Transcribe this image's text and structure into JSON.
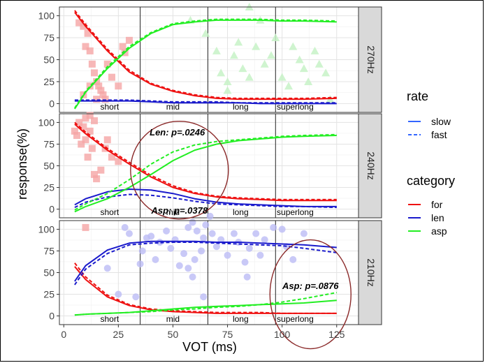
{
  "chart_data": {
    "type": "line",
    "xlabel": "VOT (ms)",
    "ylabel": "response(%)",
    "xlim": [
      -2,
      135
    ],
    "ylim": [
      -10,
      110
    ],
    "x_ticks": [
      0,
      25,
      50,
      75,
      100,
      125
    ],
    "y_ticks": [
      0,
      25,
      50,
      75,
      100
    ],
    "grid": true,
    "boundaries": [
      35,
      66,
      97
    ],
    "region_labels": [
      {
        "x": 21,
        "label": "short"
      },
      {
        "x": 50,
        "label": "mid"
      },
      {
        "x": 81,
        "label": "long"
      },
      {
        "x": 106,
        "label": "superlong"
      }
    ],
    "legends": {
      "rate": {
        "title": "rate",
        "items": [
          {
            "label": "slow",
            "style": "solid"
          },
          {
            "label": "fast",
            "style": "dashed"
          }
        ]
      },
      "category": {
        "title": "category",
        "items": [
          {
            "label": "for",
            "color": "#ee1111"
          },
          {
            "label": "len",
            "color": "#1a1acc"
          },
          {
            "label": "asp",
            "color": "#22ee22"
          }
        ]
      }
    },
    "x": [
      5,
      10,
      20,
      30,
      40,
      50,
      60,
      70,
      80,
      90,
      100,
      110,
      125
    ],
    "panels": [
      {
        "strip": "270Hz",
        "series": [
          {
            "category": "for",
            "rate": "slow",
            "values": [
              104,
              88,
              60,
              36,
              22,
              14,
              9,
              6,
              5,
              5,
              5,
              5,
              6
            ]
          },
          {
            "category": "for",
            "rate": "fast",
            "values": [
              106,
              90,
              62,
              38,
              23,
              15,
              10,
              7,
              6,
              6,
              6,
              6,
              7
            ]
          },
          {
            "category": "len",
            "rate": "slow",
            "values": [
              3,
              3,
              3,
              3,
              2,
              1,
              1,
              1,
              1,
              0,
              0,
              0,
              0
            ]
          },
          {
            "category": "len",
            "rate": "fast",
            "values": [
              4,
              4,
              4,
              4,
              3,
              2,
              2,
              2,
              1,
              1,
              1,
              1,
              1
            ]
          },
          {
            "category": "asp",
            "rate": "slow",
            "values": [
              -6,
              13,
              40,
              63,
              80,
              90,
              93,
              95,
              95,
              95,
              94,
              94,
              93
            ]
          },
          {
            "category": "asp",
            "rate": "fast",
            "values": [
              -5,
              14,
              42,
              65,
              81,
              91,
              94,
              96,
              96,
              96,
              95,
              95,
              94
            ]
          }
        ],
        "points": [
          {
            "color": "#f5a5a5",
            "shape": "square",
            "xy": [
              [
                7,
                92
              ],
              [
                9,
                88
              ],
              [
                10,
                65
              ],
              [
                11,
                80
              ],
              [
                12,
                60
              ],
              [
                13,
                45
              ],
              [
                14,
                35
              ],
              [
                15,
                25
              ],
              [
                16,
                20
              ],
              [
                17,
                15
              ],
              [
                18,
                10
              ],
              [
                19,
                5
              ],
              [
                20,
                45
              ],
              [
                22,
                30
              ],
              [
                25,
                20
              ],
              [
                27,
                65
              ],
              [
                28,
                58
              ],
              [
                30,
                72
              ],
              [
                12,
                20
              ],
              [
                9,
                10
              ],
              [
                15,
                5
              ]
            ]
          },
          {
            "color": "#c7f2c7",
            "shape": "triangle",
            "xy": [
              [
                58,
                95
              ],
              [
                65,
                80
              ],
              [
                70,
                60
              ],
              [
                72,
                35
              ],
              [
                75,
                25
              ],
              [
                78,
                55
              ],
              [
                80,
                70
              ],
              [
                82,
                40
              ],
              [
                85,
                30
              ],
              [
                88,
                65
              ],
              [
                90,
                95
              ],
              [
                92,
                45
              ],
              [
                95,
                55
              ],
              [
                97,
                75
              ],
              [
                100,
                30
              ],
              [
                103,
                20
              ],
              [
                105,
                65
              ],
              [
                108,
                50
              ],
              [
                110,
                40
              ],
              [
                112,
                25
              ],
              [
                115,
                60
              ],
              [
                117,
                45
              ],
              [
                120,
                35
              ],
              [
                85,
                110
              ],
              [
                75,
                15
              ],
              [
                122,
                5
              ]
            ]
          }
        ]
      },
      {
        "strip": "240Hz",
        "series": [
          {
            "category": "for",
            "rate": "slow",
            "values": [
              98,
              87,
              68,
              52,
              37,
              25,
              18,
              14,
              12,
              11,
              10,
              10,
              10
            ]
          },
          {
            "category": "for",
            "rate": "fast",
            "values": [
              100,
              89,
              70,
              54,
              39,
              27,
              19,
              15,
              13,
              12,
              11,
              11,
              11
            ]
          },
          {
            "category": "len",
            "rate": "slow",
            "values": [
              5,
              12,
              20,
              23,
              22,
              18,
              12,
              8,
              6,
              5,
              4,
              3,
              3
            ]
          },
          {
            "category": "len",
            "rate": "fast",
            "values": [
              2,
              8,
              14,
              17,
              16,
              13,
              9,
              6,
              5,
              4,
              3,
              3,
              2
            ]
          },
          {
            "category": "asp",
            "rate": "slow",
            "values": [
              -3,
              3,
              12,
              25,
              40,
              56,
              68,
              75,
              79,
              81,
              83,
              84,
              85
            ]
          },
          {
            "category": "asp",
            "rate": "fast",
            "values": [
              -1,
              6,
              18,
              34,
              52,
              66,
              74,
              78,
              80,
              82,
              84,
              85,
              86
            ]
          }
        ],
        "points": [
          {
            "color": "#f5a5a5",
            "shape": "square",
            "xy": [
              [
                5,
                90
              ],
              [
                6,
                85
              ],
              [
                7,
                100
              ],
              [
                8,
                75
              ],
              [
                9,
                95
              ],
              [
                10,
                80
              ],
              [
                11,
                60
              ],
              [
                12,
                90
              ],
              [
                13,
                70
              ],
              [
                14,
                40
              ],
              [
                15,
                35
              ],
              [
                17,
                45
              ],
              [
                19,
                70
              ],
              [
                20,
                80
              ],
              [
                22,
                60
              ],
              [
                25,
                55
              ],
              [
                10,
                105
              ],
              [
                12,
                108
              ],
              [
                14,
                102
              ]
            ]
          }
        ]
      },
      {
        "strip": "210Hz",
        "series": [
          {
            "category": "for",
            "rate": "slow",
            "values": [
              57,
              42,
              22,
              12,
              7,
              5,
              4,
              3,
              3,
              3,
              3,
              3,
              3
            ]
          },
          {
            "category": "for",
            "rate": "fast",
            "values": [
              61,
              45,
              24,
              13,
              8,
              6,
              5,
              4,
              4,
              4,
              3,
              3,
              3
            ]
          },
          {
            "category": "len",
            "rate": "slow",
            "values": [
              40,
              58,
              76,
              84,
              86,
              86,
              86,
              85,
              85,
              84,
              83,
              82,
              79
            ]
          },
          {
            "category": "len",
            "rate": "fast",
            "values": [
              36,
              54,
              72,
              82,
              84,
              85,
              85,
              84,
              83,
              82,
              81,
              78,
              73
            ]
          },
          {
            "category": "asp",
            "rate": "slow",
            "values": [
              1,
              2,
              3,
              4,
              6,
              8,
              10,
              11,
              12,
              13,
              14,
              15,
              18
            ]
          },
          {
            "category": "asp",
            "rate": "fast",
            "values": [
              1,
              2,
              3,
              4,
              5,
              7,
              8,
              10,
              11,
              13,
              16,
              20,
              27
            ]
          }
        ],
        "points": [
          {
            "color": "#f5a5a5",
            "shape": "square",
            "xy": [
              [
                10,
                102
              ]
            ]
          },
          {
            "color": "#bbbbf5",
            "shape": "circle",
            "xy": [
              [
                20,
                55
              ],
              [
                28,
                102
              ],
              [
                30,
                95
              ],
              [
                35,
                60
              ],
              [
                36,
                75
              ],
              [
                38,
                90
              ],
              [
                40,
                92
              ],
              [
                42,
                65
              ],
              [
                44,
                85
              ],
              [
                47,
                98
              ],
              [
                49,
                78
              ],
              [
                51,
                88
              ],
              [
                53,
                58
              ],
              [
                55,
                72
              ],
              [
                57,
                102
              ],
              [
                59,
                108
              ],
              [
                61,
                98
              ],
              [
                63,
                75
              ],
              [
                64,
                90
              ],
              [
                65,
                105
              ],
              [
                67,
                115
              ],
              [
                68,
                95
              ],
              [
                70,
                80
              ],
              [
                72,
                88
              ],
              [
                75,
                70
              ],
              [
                78,
                95
              ],
              [
                80,
                85
              ],
              [
                83,
                62
              ],
              [
                85,
                78
              ],
              [
                88,
                95
              ],
              [
                90,
                70
              ],
              [
                92,
                88
              ],
              [
                96,
                102
              ],
              [
                100,
                100
              ],
              [
                102,
                80
              ],
              [
                105,
                65
              ],
              [
                57,
                55
              ],
              [
                59,
                45
              ],
              [
                60,
                65
              ],
              [
                64,
                22
              ],
              [
                84,
                45
              ],
              [
                110,
                95
              ],
              [
                33,
                22
              ],
              [
                25,
                25
              ]
            ]
          }
        ]
      }
    ],
    "annotations": [
      {
        "panel": 1,
        "text": "Len: p=.0246",
        "x": 52,
        "y": 85
      },
      {
        "panel": 1,
        "text": "Asp: p=.0378",
        "x": 53,
        "y": -5
      },
      {
        "panel": 2,
        "text": "Asp: p=.0876",
        "x": 113,
        "y": 31
      }
    ]
  }
}
